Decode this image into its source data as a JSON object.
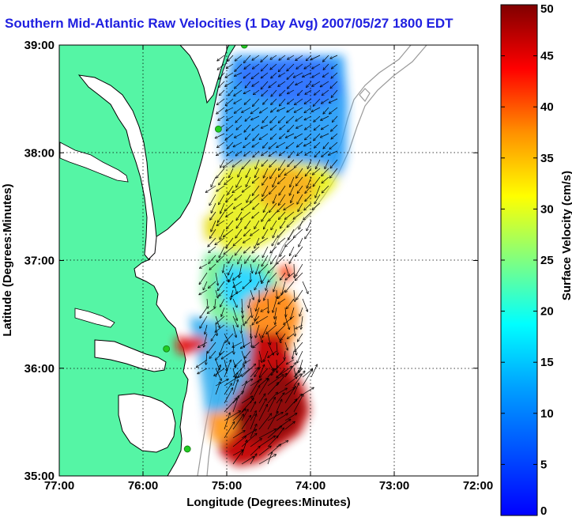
{
  "title": "Southern Mid-Atlantic Raw Velocities (1 Day Avg) 2007/05/27 1800 EDT",
  "xlabel": "Longitude (Degrees:Minutes)",
  "ylabel": "Latitude (Degrees:Minutes)",
  "x_ticks": [
    {
      "value": -77,
      "label": "77:00"
    },
    {
      "value": -76,
      "label": "76:00"
    },
    {
      "value": -75,
      "label": "75:00"
    },
    {
      "value": -74,
      "label": "74:00"
    },
    {
      "value": -73,
      "label": "73:00"
    },
    {
      "value": -72,
      "label": "72:00"
    }
  ],
  "y_ticks": [
    {
      "value": 39,
      "label": "39:00"
    },
    {
      "value": 38,
      "label": "38:00"
    },
    {
      "value": 37,
      "label": "37:00"
    },
    {
      "value": 36,
      "label": "36:00"
    },
    {
      "value": 35,
      "label": "35:00"
    }
  ],
  "lon_range": [
    -77,
    -72
  ],
  "lat_range": [
    35,
    39
  ],
  "grid": "dotted",
  "colorbar": {
    "label": "Surface Velocity (cm/s)",
    "range": [
      0,
      50
    ],
    "ticks": [
      {
        "value": 0,
        "label": "0"
      },
      {
        "value": 5,
        "label": "5"
      },
      {
        "value": 10,
        "label": "10"
      },
      {
        "value": 15,
        "label": "15"
      },
      {
        "value": 20,
        "label": "20"
      },
      {
        "value": 25,
        "label": "25"
      },
      {
        "value": 30,
        "label": "30"
      },
      {
        "value": 35,
        "label": "35"
      },
      {
        "value": 40,
        "label": "40"
      },
      {
        "value": 45,
        "label": "45"
      },
      {
        "value": 50,
        "label": "50"
      }
    ],
    "colormap": "jet"
  },
  "colors": {
    "land": "#55f5a5",
    "water": "#ffffff",
    "coastline": "#000000",
    "bathymetry": "#9a9a9a",
    "stations": "#22cc22",
    "title": "#2020e0"
  },
  "stations": [
    {
      "lon": -74.79,
      "lat": 39.0
    },
    {
      "lon": -75.1,
      "lat": 38.22
    },
    {
      "lon": -75.72,
      "lat": 36.18
    },
    {
      "lon": -75.47,
      "lat": 35.25
    }
  ],
  "chart_data": {
    "type": "heatmap",
    "title": "Southern Mid-Atlantic Raw Velocities (1 Day Avg) 2007/05/27 1800 EDT",
    "xlabel": "Longitude (Degrees:Minutes)",
    "ylabel": "Latitude (Degrees:Minutes)",
    "xlim": [
      -77,
      -72
    ],
    "ylim": [
      35,
      39
    ],
    "colorbar_label": "Surface Velocity (cm/s)",
    "clim": [
      0,
      50
    ],
    "regions": [
      {
        "name": "",
        "lon": -74.55,
        "lat": 38.6,
        "speed": 8
      },
      {
        "name": "",
        "lon": -74.55,
        "lat": 38.15,
        "speed": 12
      },
      {
        "name": "",
        "lon": -74.45,
        "lat": 37.7,
        "speed": 28
      },
      {
        "name": "",
        "lon": -74.95,
        "lat": 37.3,
        "speed": 22
      },
      {
        "name": "",
        "lon": -74.95,
        "lat": 36.6,
        "speed": 10
      },
      {
        "name": "",
        "lon": -74.5,
        "lat": 36.55,
        "speed": 38
      },
      {
        "name": "",
        "lon": -74.75,
        "lat": 36.0,
        "speed": 14
      },
      {
        "name": "",
        "lon": -74.35,
        "lat": 35.55,
        "speed": 48
      },
      {
        "name": "",
        "lon": -75.55,
        "lat": 36.28,
        "speed": 44
      }
    ]
  }
}
